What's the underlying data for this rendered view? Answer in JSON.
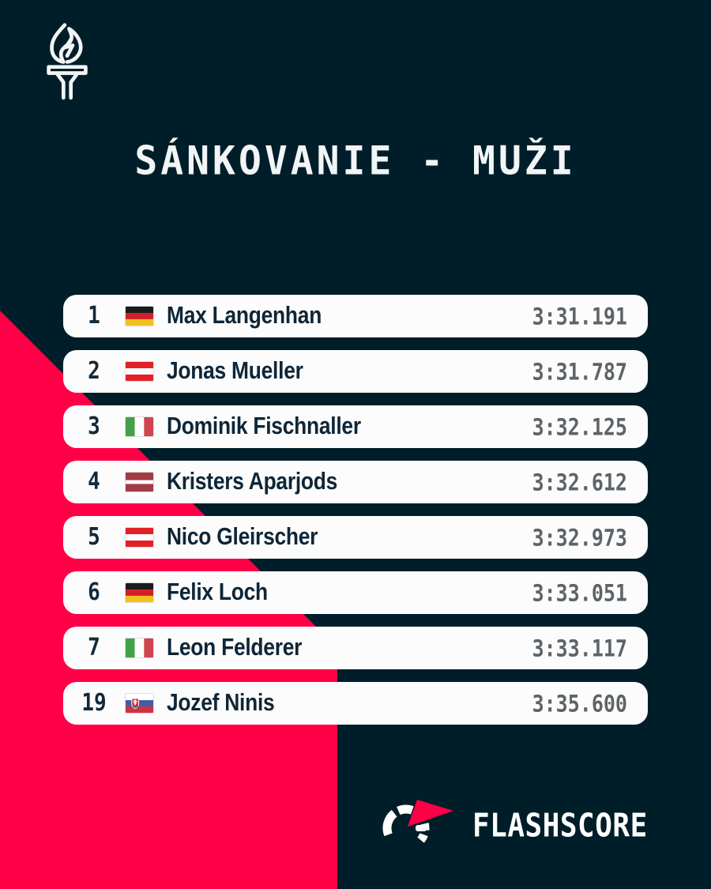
{
  "page": {
    "background_color": "#001e29",
    "accent_color": "#ff0046",
    "row_color": "#fcfcfc",
    "time_color": "#5d6367",
    "text_color": "#0e2637"
  },
  "header": {
    "title": "SÁNKOVANIE - MUŽI",
    "logo_icon": "torch-icon"
  },
  "standings": {
    "rows": [
      {
        "rank": "1",
        "flag": "de",
        "country": "Germany",
        "name": "Max Langenhan",
        "time": "3:31.191"
      },
      {
        "rank": "2",
        "flag": "at",
        "country": "Austria",
        "name": "Jonas Mueller",
        "time": "3:31.787"
      },
      {
        "rank": "3",
        "flag": "it",
        "country": "Italy",
        "name": "Dominik Fischnaller",
        "time": "3:32.125"
      },
      {
        "rank": "4",
        "flag": "lv",
        "country": "Latvia",
        "name": "Kristers Aparjods",
        "time": "3:32.612"
      },
      {
        "rank": "5",
        "flag": "at",
        "country": "Austria",
        "name": "Nico Gleirscher",
        "time": "3:32.973"
      },
      {
        "rank": "6",
        "flag": "de",
        "country": "Germany",
        "name": "Felix Loch",
        "time": "3:33.051"
      },
      {
        "rank": "7",
        "flag": "it",
        "country": "Italy",
        "name": "Leon Felderer",
        "time": "3:33.117"
      },
      {
        "rank": "19",
        "flag": "sk",
        "country": "Slovakia",
        "name": "Jozef Ninis",
        "time": "3:35.600"
      }
    ]
  },
  "footer": {
    "brand_name": "FLASHSCORE",
    "brand_icon": "flashscore-logo-icon"
  },
  "chart_data": {
    "type": "table",
    "title": "SÁNKOVANIE - MUŽI",
    "columns": [
      "rank",
      "country",
      "name",
      "time"
    ],
    "rows": [
      [
        1,
        "Germany",
        "Max Langenhan",
        "3:31.191"
      ],
      [
        2,
        "Austria",
        "Jonas Mueller",
        "3:31.787"
      ],
      [
        3,
        "Italy",
        "Dominik Fischnaller",
        "3:32.125"
      ],
      [
        4,
        "Latvia",
        "Kristers Aparjods",
        "3:32.612"
      ],
      [
        5,
        "Austria",
        "Nico Gleirscher",
        "3:32.973"
      ],
      [
        6,
        "Germany",
        "Felix Loch",
        "3:33.051"
      ],
      [
        7,
        "Italy",
        "Leon Felderer",
        "3:33.117"
      ],
      [
        19,
        "Slovakia",
        "Jozef Ninis",
        "3:35.600"
      ]
    ]
  }
}
